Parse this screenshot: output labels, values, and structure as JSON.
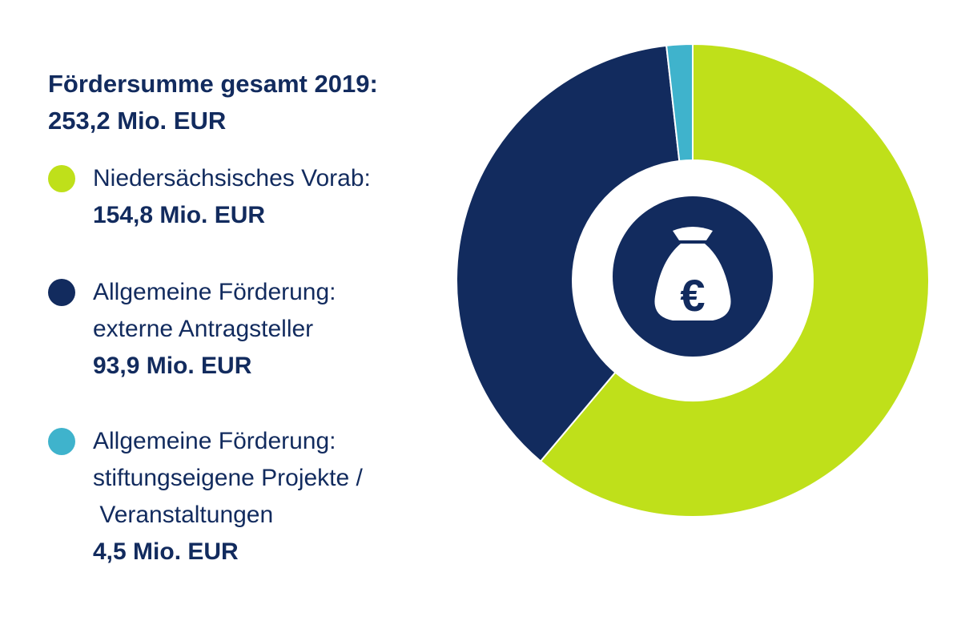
{
  "header": {
    "title": "Fördersumme gesamt 2019:",
    "total": "253,2 Mio. EUR"
  },
  "legend": [
    {
      "lines": [
        "Niedersächsisches Vorab:"
      ],
      "value_text": "154,8 Mio. EUR",
      "color": "#bfe01a"
    },
    {
      "lines": [
        "Allgemeine Förderung:",
        "externe Antragsteller"
      ],
      "value_text": "93,9 Mio. EUR",
      "color": "#122b5e"
    },
    {
      "lines": [
        "Allgemeine Förderung:",
        "stiftungseigene Projekte /",
        " Veranstaltungen"
      ],
      "value_text": "4,5 Mio. EUR",
      "color": "#3fb3cc"
    }
  ],
  "center_icon": "money-bag-euro-icon",
  "chart_data": {
    "type": "pie",
    "title": "Fördersumme gesamt 2019:",
    "total": 253.2,
    "unit": "Mio. EUR",
    "categories": [
      "Niedersächsisches Vorab",
      "Allgemeine Förderung: externe Antragsteller",
      "Allgemeine Förderung: stiftungseigene Projekte / Veranstaltungen"
    ],
    "values": [
      154.8,
      93.9,
      4.5
    ],
    "colors": [
      "#bfe01a",
      "#122b5e",
      "#3fb3cc"
    ],
    "donut": true
  }
}
